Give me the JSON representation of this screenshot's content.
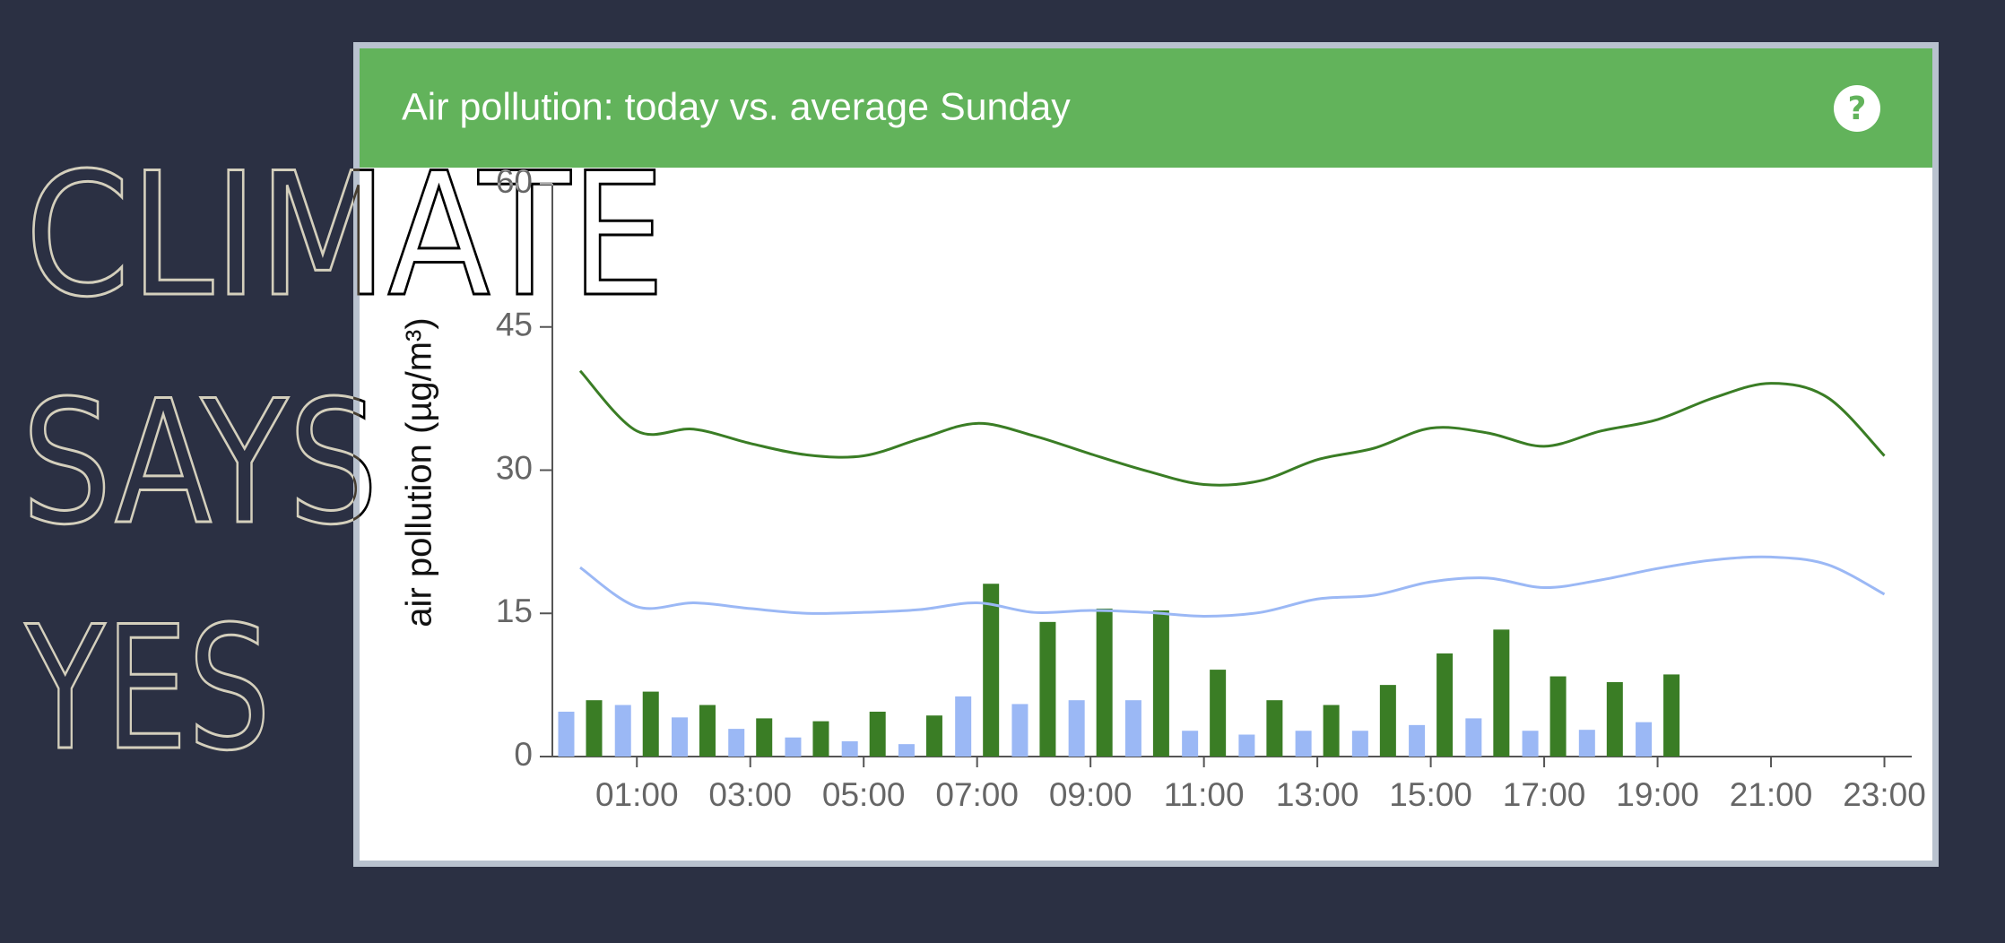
{
  "page": {
    "logo": [
      "CLIMATE",
      "SAYS",
      "YES"
    ]
  },
  "chart_data": {
    "type": "bar",
    "title": "Air pollution: today vs. average Sunday",
    "help_icon": "?",
    "y_label": "air pollution (µg/m³)",
    "categories": [
      null,
      "01:00",
      null,
      "03:00",
      null,
      "05:00",
      null,
      "07:00",
      null,
      "09:00",
      null,
      "11:00",
      null,
      "13:00",
      null,
      "15:00",
      null,
      "17:00",
      null,
      "19:00",
      null,
      "21:00",
      null,
      "23:00"
    ],
    "series": [
      {
        "type": "bar",
        "color": "#9bb8f5",
        "values": [
          4.7,
          5.4,
          4.1,
          2.9,
          2.0,
          1.6,
          1.3,
          6.3,
          5.5,
          5.9,
          5.9,
          2.7,
          2.3,
          2.7,
          2.7,
          3.3,
          4.0,
          2.7,
          2.8,
          3.6,
          null,
          null,
          null,
          null
        ]
      },
      {
        "type": "bar",
        "color": "#3a7d25",
        "values": [
          5.9,
          6.8,
          5.4,
          4.0,
          3.7,
          4.7,
          4.3,
          18.1,
          14.1,
          15.5,
          15.3,
          9.1,
          5.9,
          5.4,
          7.5,
          10.8,
          13.3,
          8.4,
          7.8,
          8.6,
          null,
          null,
          null,
          null
        ]
      },
      {
        "type": "line",
        "color": "#9bb8f5",
        "values": [
          19.8,
          15.7,
          16.1,
          15.5,
          15.0,
          15.1,
          15.4,
          16.1,
          15.1,
          15.3,
          15.1,
          14.7,
          15.1,
          16.5,
          16.9,
          18.3,
          18.7,
          17.7,
          18.5,
          19.7,
          20.6,
          20.9,
          20.1,
          17.0
        ]
      },
      {
        "type": "line",
        "color": "#3a7d25",
        "values": [
          40.4,
          34.1,
          34.3,
          32.8,
          31.6,
          31.5,
          33.3,
          34.9,
          33.6,
          31.7,
          29.9,
          28.5,
          28.9,
          31.1,
          32.3,
          34.4,
          33.9,
          32.5,
          34.1,
          35.3,
          37.6,
          39.1,
          37.6,
          31.5
        ]
      }
    ],
    "ylim": [
      0,
      60
    ],
    "yticks": [
      0,
      15,
      30,
      45,
      60
    ]
  }
}
